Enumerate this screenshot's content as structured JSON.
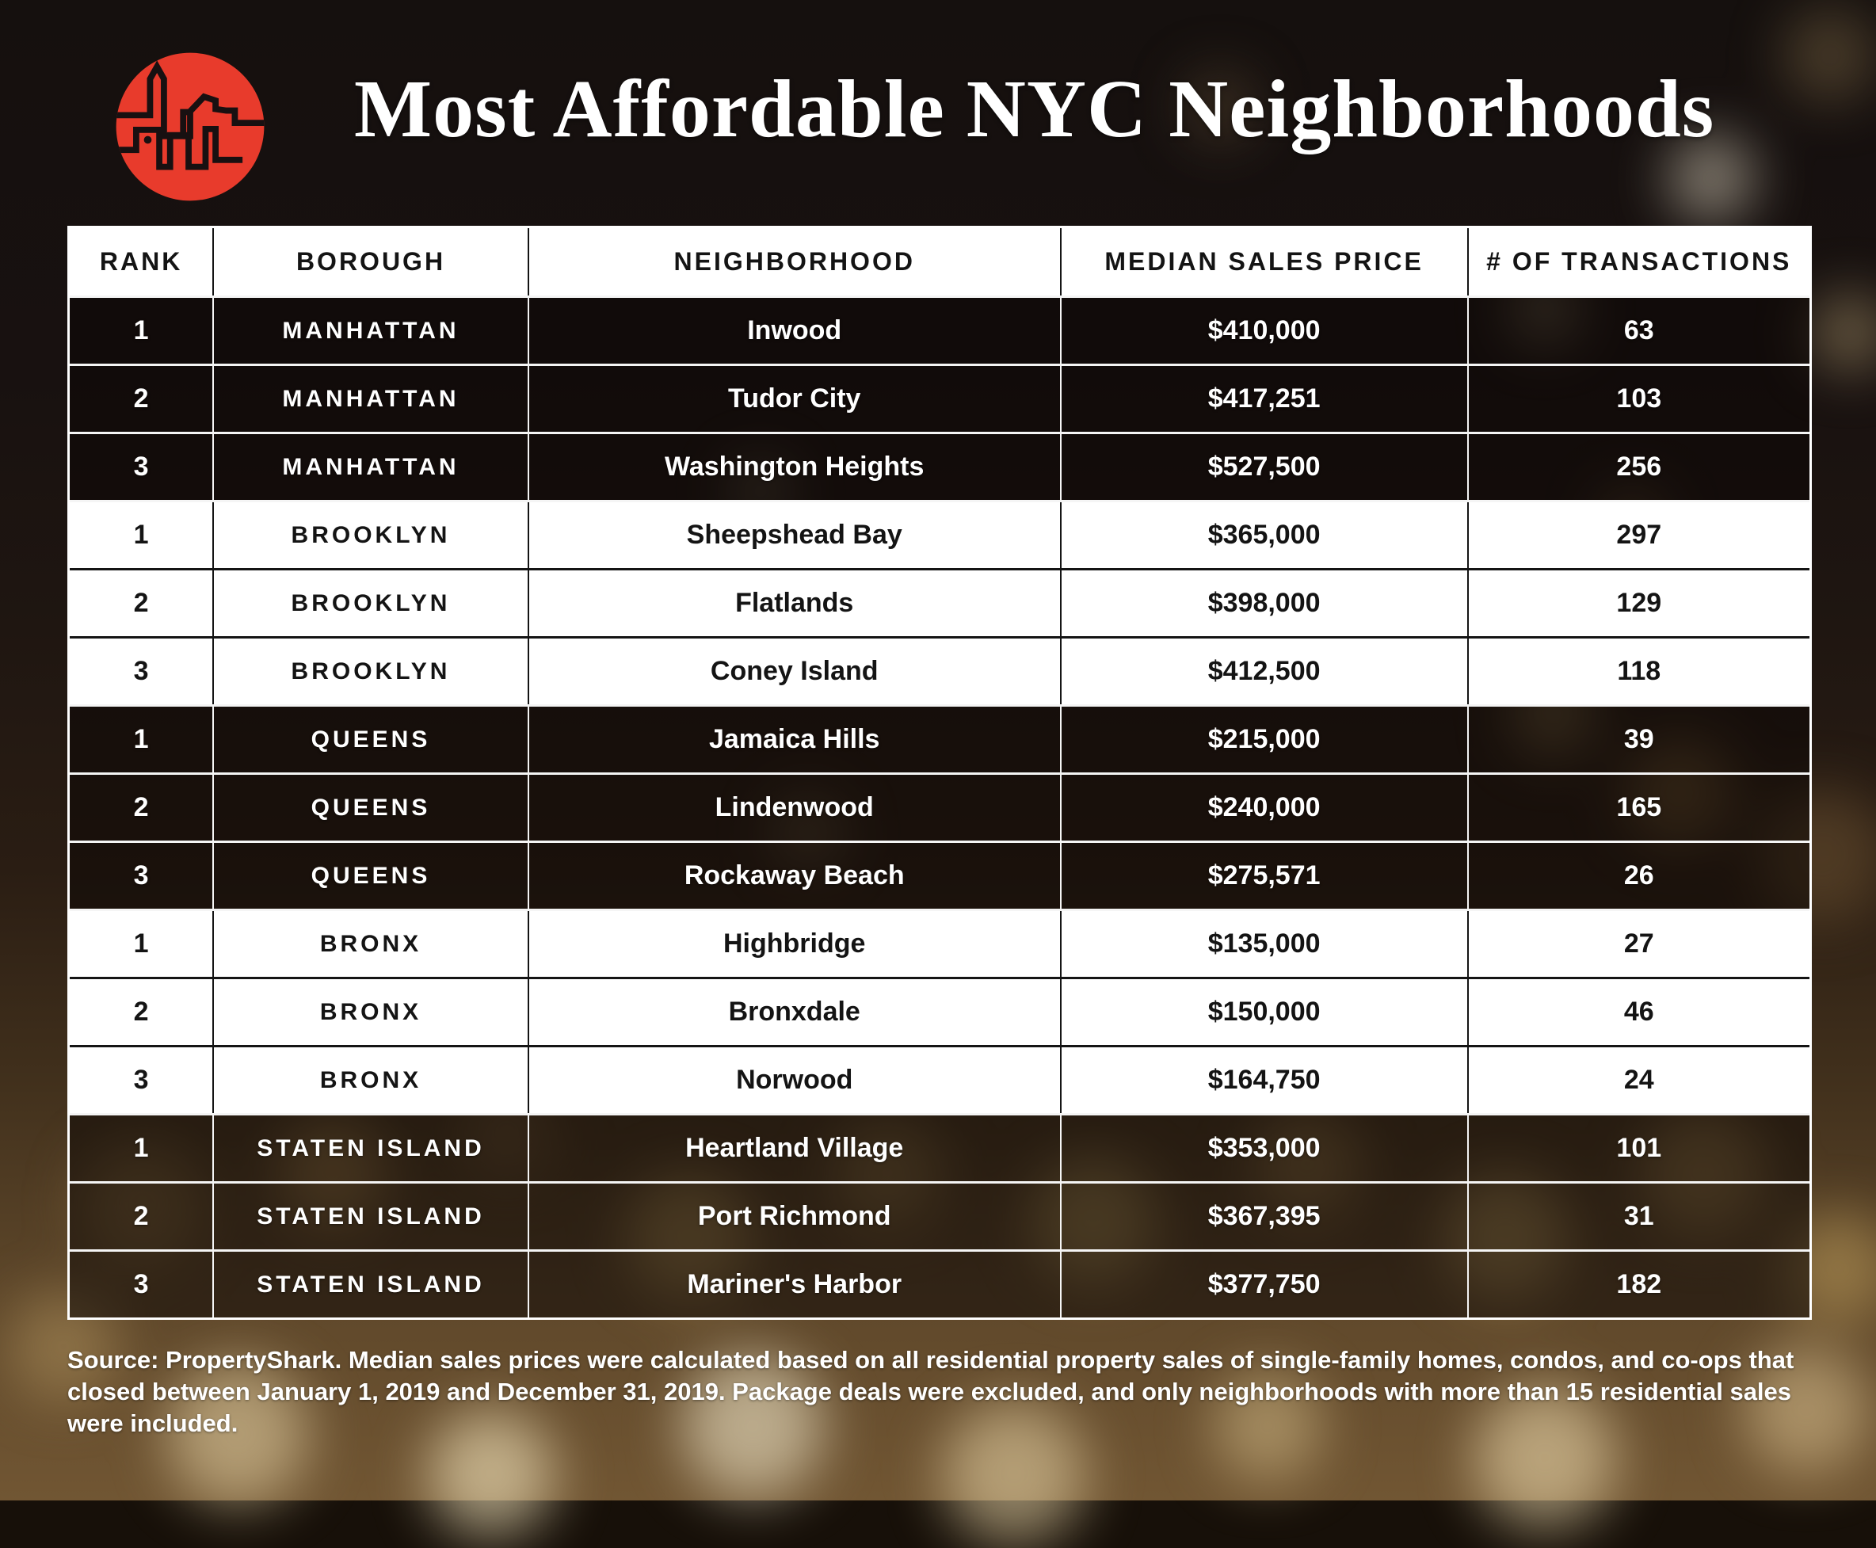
{
  "title": "Most Affordable NYC Neighborhoods",
  "logo": {
    "name": "propertyshark-skyline-logo",
    "accent_color": "#e83b2c"
  },
  "table": {
    "headers": [
      "RANK",
      "BOROUGH",
      "NEIGHBORHOOD",
      "MEDIAN SALES PRICE",
      "# OF TRANSACTIONS"
    ],
    "rows": [
      {
        "rank": "1",
        "borough": "MANHATTAN",
        "neighborhood": "Inwood",
        "price": "$410,000",
        "transactions": "63",
        "theme": "dark"
      },
      {
        "rank": "2",
        "borough": "MANHATTAN",
        "neighborhood": "Tudor City",
        "price": "$417,251",
        "transactions": "103",
        "theme": "dark"
      },
      {
        "rank": "3",
        "borough": "MANHATTAN",
        "neighborhood": "Washington Heights",
        "price": "$527,500",
        "transactions": "256",
        "theme": "dark"
      },
      {
        "rank": "1",
        "borough": "BROOKLYN",
        "neighborhood": "Sheepshead Bay",
        "price": "$365,000",
        "transactions": "297",
        "theme": "light"
      },
      {
        "rank": "2",
        "borough": "BROOKLYN",
        "neighborhood": "Flatlands",
        "price": "$398,000",
        "transactions": "129",
        "theme": "light"
      },
      {
        "rank": "3",
        "borough": "BROOKLYN",
        "neighborhood": "Coney Island",
        "price": "$412,500",
        "transactions": "118",
        "theme": "light"
      },
      {
        "rank": "1",
        "borough": "QUEENS",
        "neighborhood": "Jamaica Hills",
        "price": "$215,000",
        "transactions": "39",
        "theme": "dark"
      },
      {
        "rank": "2",
        "borough": "QUEENS",
        "neighborhood": "Lindenwood",
        "price": "$240,000",
        "transactions": "165",
        "theme": "dark"
      },
      {
        "rank": "3",
        "borough": "QUEENS",
        "neighborhood": "Rockaway Beach",
        "price": "$275,571",
        "transactions": "26",
        "theme": "dark"
      },
      {
        "rank": "1",
        "borough": "BRONX",
        "neighborhood": "Highbridge",
        "price": "$135,000",
        "transactions": "27",
        "theme": "light"
      },
      {
        "rank": "2",
        "borough": "BRONX",
        "neighborhood": "Bronxdale",
        "price": "$150,000",
        "transactions": "46",
        "theme": "light"
      },
      {
        "rank": "3",
        "borough": "BRONX",
        "neighborhood": "Norwood",
        "price": "$164,750",
        "transactions": "24",
        "theme": "light"
      },
      {
        "rank": "1",
        "borough": "STATEN ISLAND",
        "neighborhood": "Heartland Village",
        "price": "$353,000",
        "transactions": "101",
        "theme": "dark"
      },
      {
        "rank": "2",
        "borough": "STATEN ISLAND",
        "neighborhood": "Port Richmond",
        "price": "$367,395",
        "transactions": "31",
        "theme": "dark"
      },
      {
        "rank": "3",
        "borough": "STATEN ISLAND",
        "neighborhood": "Mariner's Harbor",
        "price": "$377,750",
        "transactions": "182",
        "theme": "dark"
      }
    ]
  },
  "source_note": "Source: PropertyShark. Median sales prices were calculated based on all residential property sales of single-family homes, condos, and co-ops that closed between January 1, 2019 and December 31, 2019. Package deals were excluded, and only neighborhoods with more than 15 residential sales were included.",
  "colors": {
    "accent_red": "#e83b2c",
    "row_light_bg": "#ffffff",
    "row_dark_overlay": "rgba(13,8,6,0.55)",
    "text_light": "#ffffff",
    "text_dark": "#141414"
  }
}
